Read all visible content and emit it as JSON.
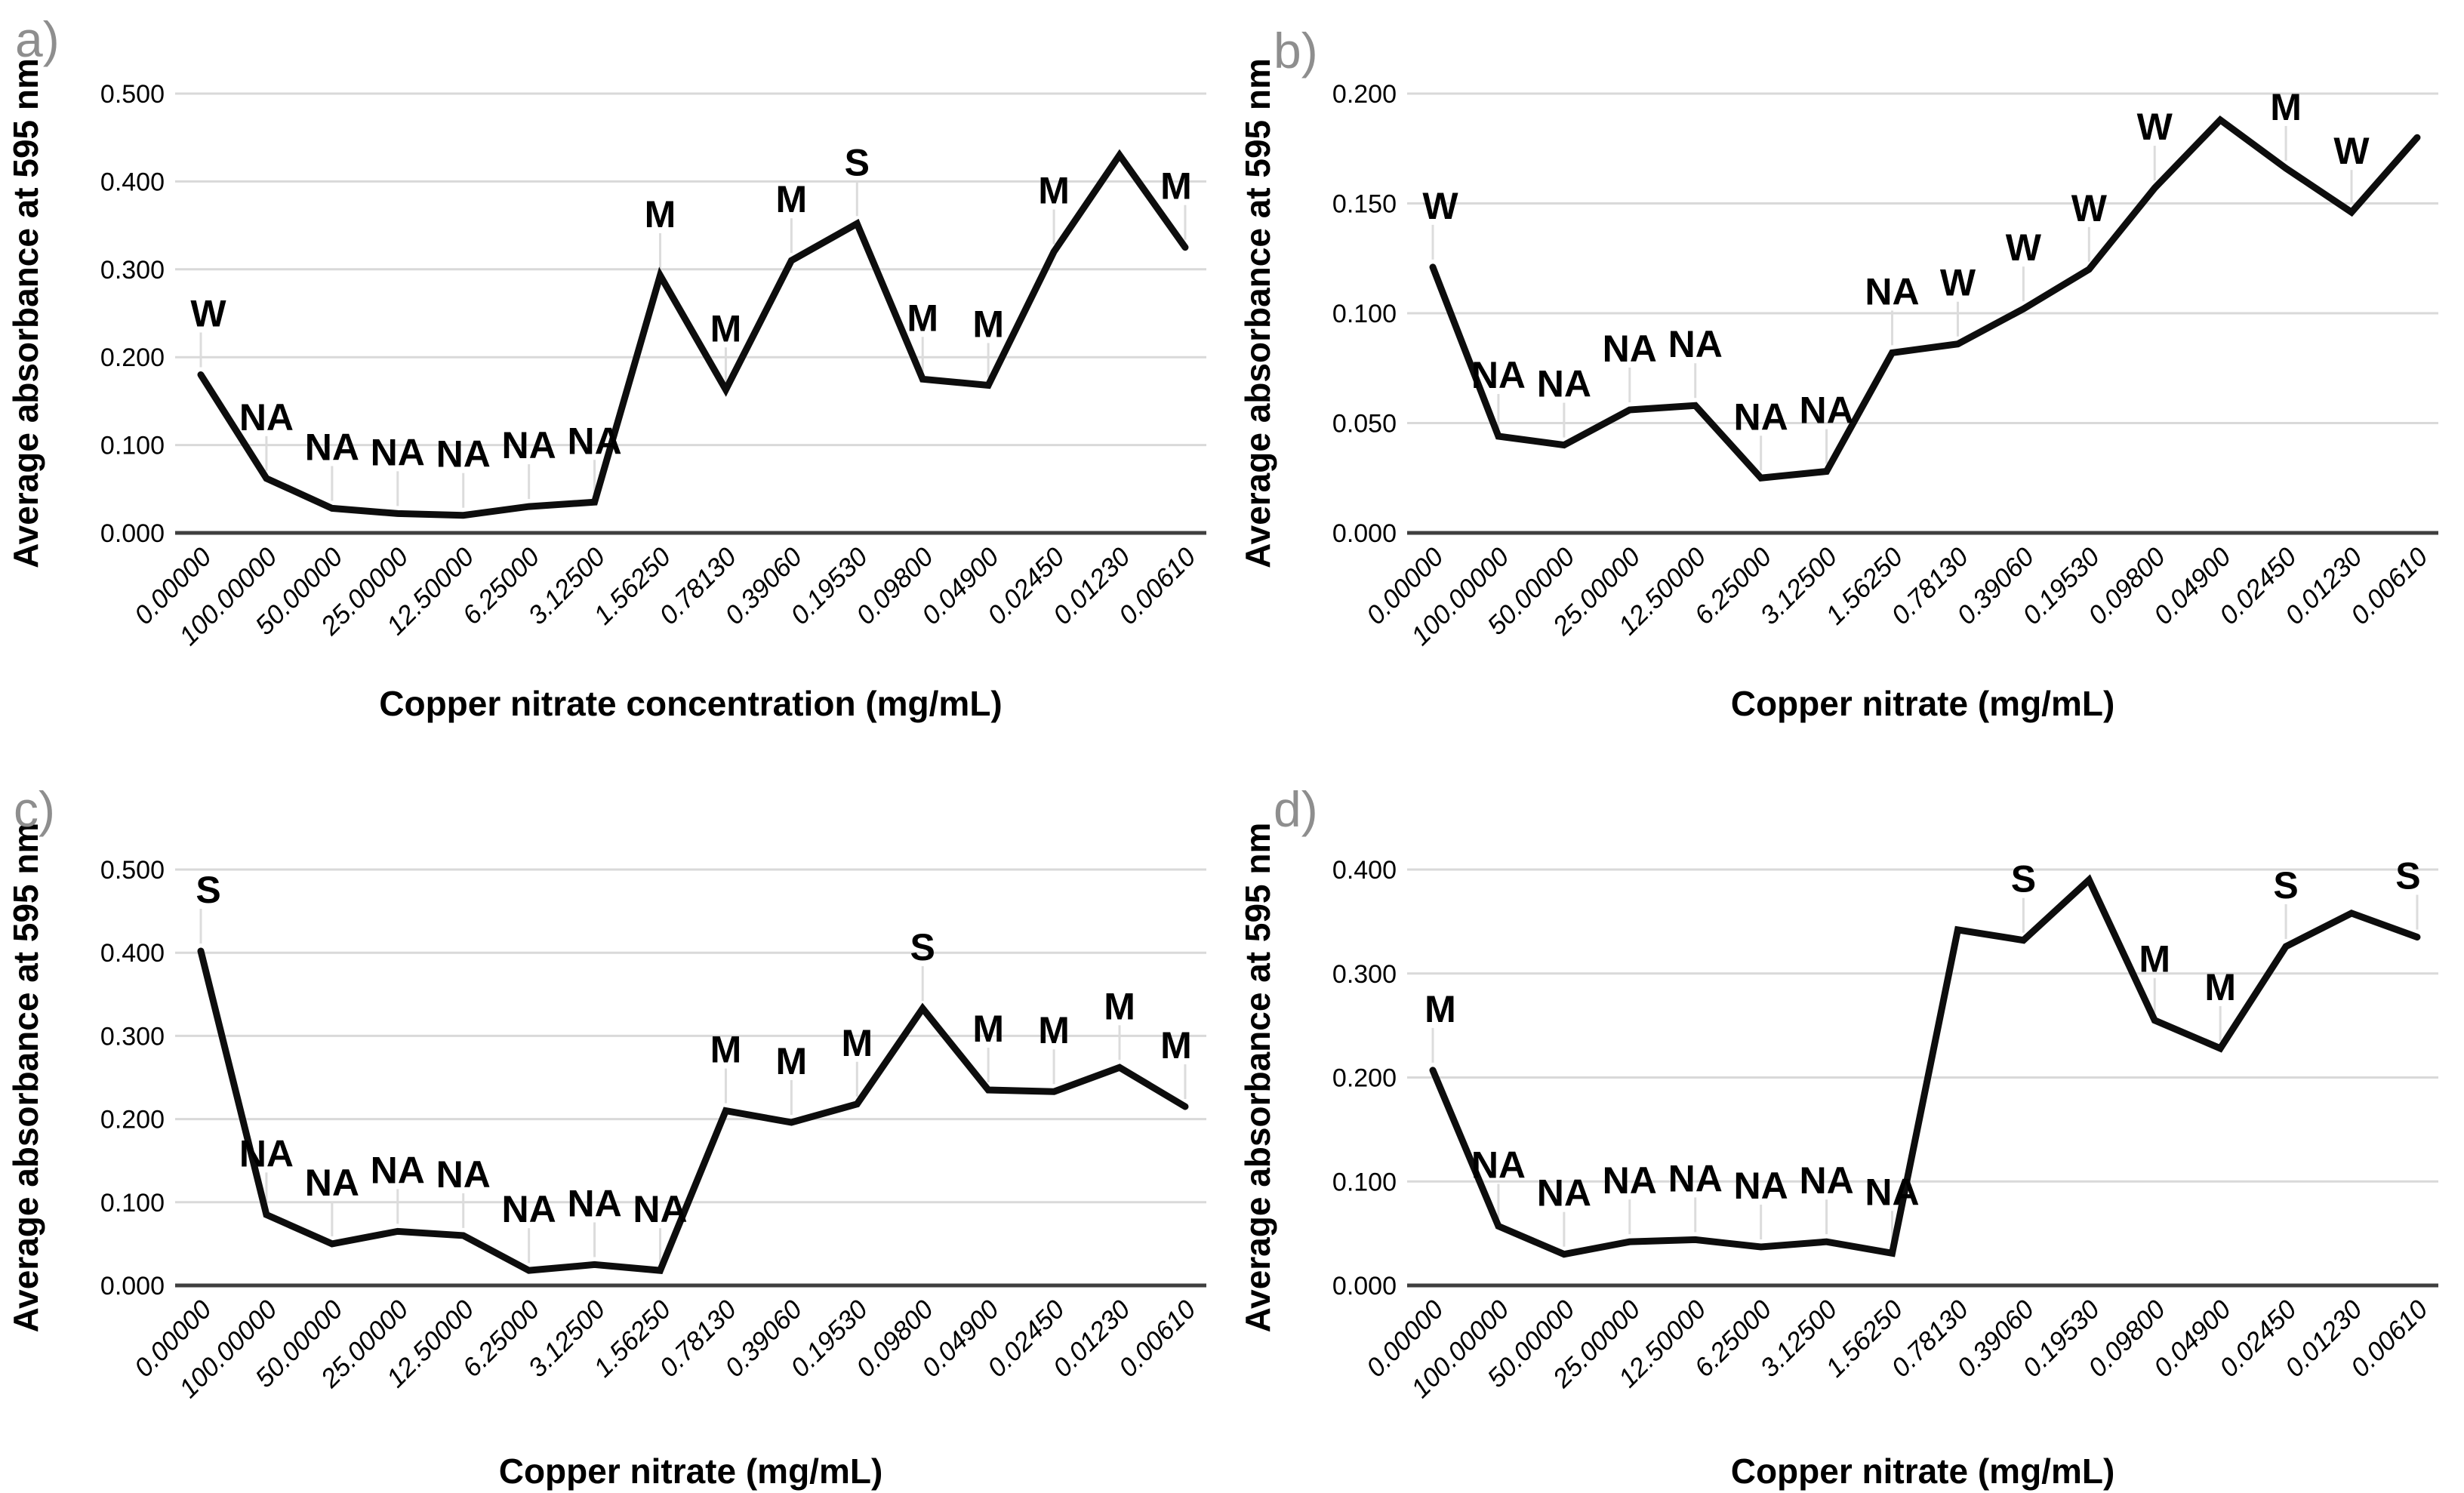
{
  "figure": {
    "background": "#ffffff",
    "ylabel_shared": "Average absorbance at 595 nm"
  },
  "colors": {
    "series_line": "#0d0d0d",
    "gridline": "#d9d9d9",
    "zero_axis": "#3f3f3f",
    "leader_line": "#dcdcdc",
    "panel_letter": "#8e8e8e",
    "text": "#000000"
  },
  "chart_data": [
    {
      "id": "a",
      "type": "line",
      "panel_letter": "a)",
      "xlabel": "Copper nitrate concentration (mg/mL)",
      "ylabel": "Average absorbance at 595 nm",
      "ylim": [
        0,
        0.5
      ],
      "grid": true,
      "ytick_labels": [
        "0.000",
        "0.100",
        "0.200",
        "0.300",
        "0.400",
        "0.500"
      ],
      "categories": [
        "0.00000",
        "100.00000",
        "50.00000",
        "25.00000",
        "12.50000",
        "6.25000",
        "3.12500",
        "1.56250",
        "0.78130",
        "0.39060",
        "0.19530",
        "0.09800",
        "0.04900",
        "0.02450",
        "0.01230",
        "0.00610"
      ],
      "values": [
        0.18,
        0.062,
        0.028,
        0.022,
        0.02,
        0.03,
        0.035,
        0.293,
        0.163,
        0.31,
        0.352,
        0.175,
        0.168,
        0.32,
        0.43,
        0.325
      ],
      "point_labels": [
        "W",
        "NA",
        "NA",
        "NA",
        "NA",
        "NA",
        "NA",
        "M",
        "M",
        "M",
        "S",
        "M",
        "M",
        "M",
        "",
        "M"
      ]
    },
    {
      "id": "b",
      "type": "line",
      "panel_letter": "b)",
      "xlabel": "Copper nitrate (mg/mL)",
      "ylabel": "Average absorbance at 595 nm",
      "ylim": [
        0,
        0.2
      ],
      "grid": true,
      "ytick_labels": [
        "0.000",
        "0.050",
        "0.100",
        "0.150",
        "0.200"
      ],
      "categories": [
        "0.00000",
        "100.00000",
        "50.00000",
        "25.00000",
        "12.50000",
        "6.25000",
        "3.12500",
        "1.56250",
        "0.78130",
        "0.39060",
        "0.19530",
        "0.09800",
        "0.04900",
        "0.02450",
        "0.01230",
        "0.00610"
      ],
      "values": [
        0.121,
        0.044,
        0.04,
        0.056,
        0.058,
        0.025,
        0.028,
        0.082,
        0.086,
        0.102,
        0.12,
        0.157,
        0.188,
        0.166,
        0.146,
        0.18
      ],
      "point_labels": [
        "W",
        "NA",
        "NA",
        "NA",
        "NA",
        "NA",
        "NA",
        "NA",
        "W",
        "W",
        "W",
        "W",
        "",
        "M",
        "W",
        ""
      ]
    },
    {
      "id": "c",
      "type": "line",
      "panel_letter": "c)",
      "xlabel": "Copper nitrate (mg/mL)",
      "ylabel": "Average absorbance at 595 nm",
      "ylim": [
        0,
        0.5
      ],
      "grid": true,
      "ytick_labels": [
        "0.000",
        "0.100",
        "0.200",
        "0.300",
        "0.400",
        "0.500"
      ],
      "categories": [
        "0.00000",
        "100.00000",
        "50.00000",
        "25.00000",
        "12.50000",
        "6.25000",
        "3.12500",
        "1.56250",
        "0.78130",
        "0.39060",
        "0.19530",
        "0.09800",
        "0.04900",
        "0.02450",
        "0.01230",
        "0.00610"
      ],
      "values": [
        0.402,
        0.085,
        0.05,
        0.065,
        0.06,
        0.018,
        0.025,
        0.018,
        0.21,
        0.196,
        0.218,
        0.333,
        0.235,
        0.233,
        0.262,
        0.215
      ],
      "point_labels": [
        "S",
        "NA",
        "NA",
        "NA",
        "NA",
        "NA",
        "NA",
        "NA",
        "M",
        "M",
        "M",
        "S",
        "M",
        "M",
        "M",
        "M"
      ]
    },
    {
      "id": "d",
      "type": "line",
      "panel_letter": "d)",
      "xlabel": "Copper nitrate (mg/mL)",
      "ylabel": "Average absorbance at 595 nm",
      "ylim": [
        0,
        0.4
      ],
      "grid": true,
      "ytick_labels": [
        "0.000",
        "0.100",
        "0.200",
        "0.300",
        "0.400"
      ],
      "categories": [
        "0.00000",
        "100.00000",
        "50.00000",
        "25.00000",
        "12.50000",
        "6.25000",
        "3.12500",
        "1.56250",
        "0.78130",
        "0.39060",
        "0.19530",
        "0.09800",
        "0.04900",
        "0.02450",
        "0.01230",
        "0.00610"
      ],
      "values": [
        0.207,
        0.057,
        0.03,
        0.042,
        0.044,
        0.037,
        0.042,
        0.031,
        0.342,
        0.332,
        0.39,
        0.255,
        0.228,
        0.326,
        0.358,
        0.335
      ],
      "point_labels": [
        "M",
        "NA",
        "NA",
        "NA",
        "NA",
        "NA",
        "NA",
        "NA",
        "",
        "S",
        "",
        "M",
        "M",
        "S",
        "",
        "S"
      ]
    }
  ]
}
